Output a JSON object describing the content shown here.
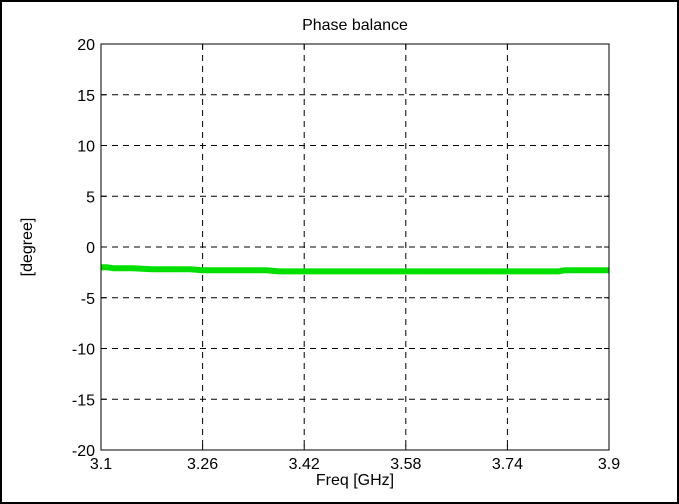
{
  "chart_data": {
    "type": "line",
    "title": "Phase balance",
    "xlabel": "Freq [GHz]",
    "ylabel": "[degree]",
    "xlim": [
      3.1,
      3.9
    ],
    "ylim": [
      -20,
      20
    ],
    "xticks": [
      3.1,
      3.26,
      3.42,
      3.58,
      3.74,
      3.9
    ],
    "xtick_labels": [
      "3.1",
      "3.26",
      "3.42",
      "3.58",
      "3.74",
      "3.9"
    ],
    "yticks": [
      20,
      15,
      10,
      5,
      0,
      -5,
      -10,
      -15,
      -20
    ],
    "ytick_labels": [
      "20",
      "15",
      "10",
      "5",
      "0",
      "-5",
      "-10",
      "-15",
      "-20"
    ],
    "grid": true,
    "series": [
      {
        "color": "#00e000",
        "x": [
          3.1,
          3.11,
          3.12,
          3.15,
          3.18,
          3.21,
          3.24,
          3.26,
          3.3,
          3.34,
          3.36,
          3.38,
          3.42,
          3.46,
          3.5,
          3.54,
          3.58,
          3.62,
          3.66,
          3.7,
          3.74,
          3.78,
          3.82,
          3.83,
          3.86,
          3.9
        ],
        "y": [
          -2.0,
          -2.0,
          -2.1,
          -2.1,
          -2.2,
          -2.2,
          -2.2,
          -2.3,
          -2.3,
          -2.3,
          -2.3,
          -2.4,
          -2.4,
          -2.4,
          -2.4,
          -2.4,
          -2.4,
          -2.4,
          -2.4,
          -2.4,
          -2.4,
          -2.4,
          -2.4,
          -2.3,
          -2.3,
          -2.3
        ]
      }
    ]
  }
}
